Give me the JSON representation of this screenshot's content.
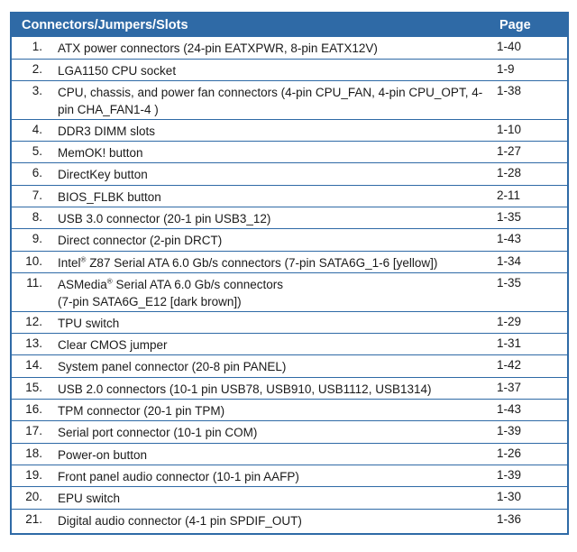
{
  "header": {
    "col1": "Connectors/Jumpers/Slots",
    "col2": "Page"
  },
  "rows": [
    {
      "num": "1.",
      "desc": "ATX power connectors (24-pin EATXPWR, 8-pin EATX12V)",
      "page": "1-40",
      "lines": 1
    },
    {
      "num": "2.",
      "desc": "LGA1150 CPU socket",
      "page": "1-9",
      "lines": 1
    },
    {
      "num": "3.",
      "desc": "CPU, chassis, and power fan connectors (4-pin CPU_FAN, 4-pin CPU_OPT, 4-pin CHA_FAN1-4 )",
      "page": "1-38",
      "lines": 2
    },
    {
      "num": "4.",
      "desc": "DDR3 DIMM slots",
      "page": "1-10",
      "lines": 1
    },
    {
      "num": "5.",
      "desc": "MemOK! button",
      "page": "1-27",
      "lines": 1
    },
    {
      "num": "6.",
      "desc": "DirectKey button",
      "page": "1-28",
      "lines": 1
    },
    {
      "num": "7.",
      "desc": "BIOS_FLBK button",
      "page": "2-11",
      "lines": 1
    },
    {
      "num": "8.",
      "desc": "USB 3.0 connector (20-1 pin USB3_12)",
      "page": "1-35",
      "lines": 1
    },
    {
      "num": "9.",
      "desc": "Direct connector (2-pin DRCT)",
      "page": "1-43",
      "lines": 1
    },
    {
      "num": "10.",
      "desc_pre": "Intel",
      "desc_sup": "®",
      "desc_post": " Z87 Serial ATA 6.0 Gb/s connectors (7-pin SATA6G_1-6 [yellow])",
      "page": "1-34",
      "lines": 1
    },
    {
      "num": "11.",
      "desc_pre": "ASMedia",
      "desc_sup": "®",
      "desc_post": " Serial ATA 6.0 Gb/s connectors",
      "desc_line2": "(7-pin SATA6G_E12 [dark brown])",
      "page": "1-35",
      "lines": 2
    },
    {
      "num": "12.",
      "desc": "TPU switch",
      "page": "1-29",
      "lines": 1
    },
    {
      "num": "13.",
      "desc": "Clear CMOS jumper",
      "page": "1-31",
      "lines": 1
    },
    {
      "num": "14.",
      "desc": "System panel connector (20-8 pin PANEL)",
      "page": "1-42",
      "lines": 1
    },
    {
      "num": "15.",
      "desc": "USB 2.0 connectors (10-1 pin USB78, USB910, USB1112, USB1314)",
      "page": "1-37",
      "lines": 1
    },
    {
      "num": "16.",
      "desc": "TPM connector (20-1 pin TPM)",
      "page": "1-43",
      "lines": 1
    },
    {
      "num": "17.",
      "desc": "Serial port connector (10-1 pin COM)",
      "page": "1-39",
      "lines": 1
    },
    {
      "num": "18.",
      "desc": "Power-on button",
      "page": "1-26",
      "lines": 1
    },
    {
      "num": "19.",
      "desc": "Front panel audio connector (10-1 pin AAFP)",
      "page": "1-39",
      "lines": 1
    },
    {
      "num": "20.",
      "desc": "EPU switch",
      "page": "1-30",
      "lines": 1
    },
    {
      "num": "21.",
      "desc": "Digital audio connector (4-1 pin SPDIF_OUT)",
      "page": "1-36",
      "lines": 1
    }
  ],
  "colors": {
    "border": "#2f6aa6",
    "header_bg": "#2f6aa6",
    "header_text": "#ffffff"
  }
}
